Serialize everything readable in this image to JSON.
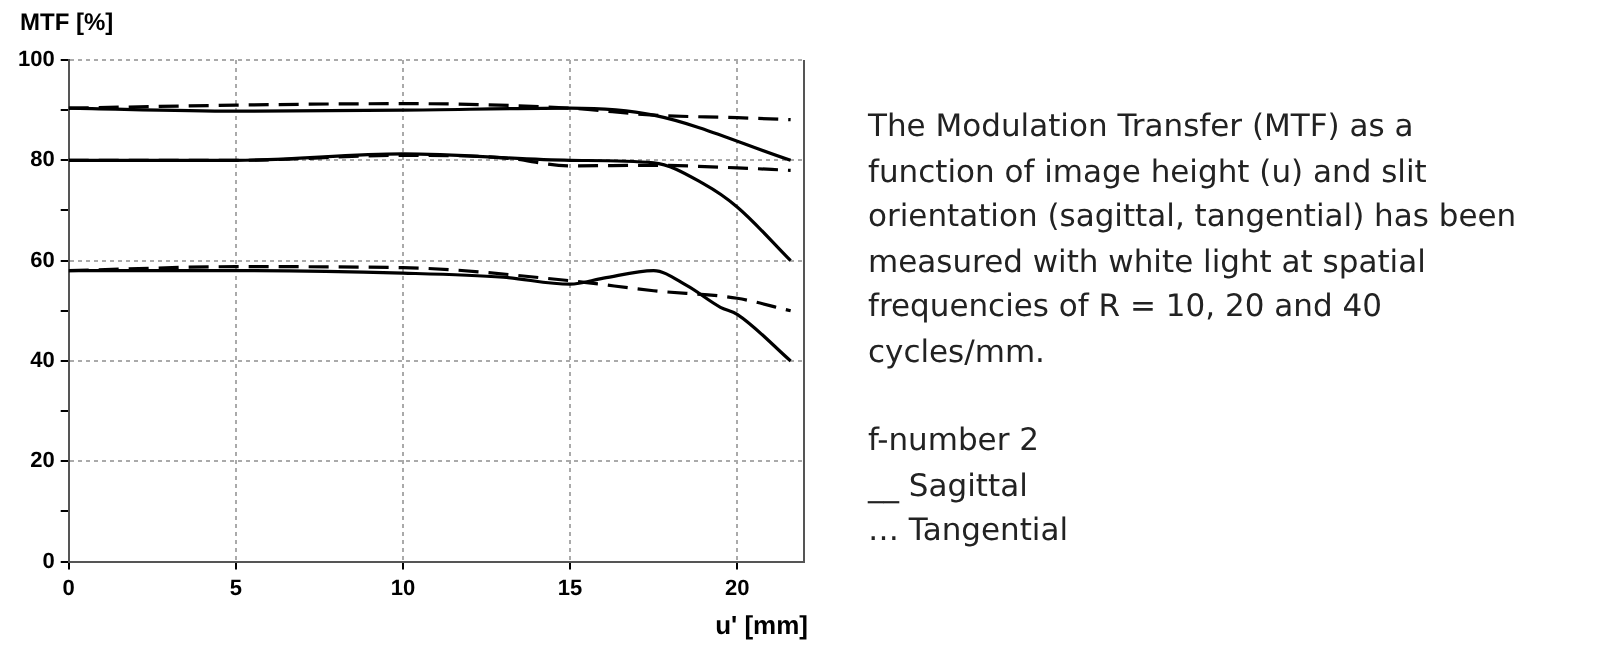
{
  "chart_data": {
    "type": "line",
    "ylabel": "MTF [%]",
    "xlabel": "u' [mm]",
    "xlim": [
      0,
      22
    ],
    "xticks": [
      0,
      5,
      10,
      15,
      20
    ],
    "ylim": [
      0,
      100
    ],
    "yticks": [
      0,
      {
        "value": 10,
        "label": null
      },
      20,
      {
        "value": 30,
        "label": null
      },
      40,
      {
        "value": 50,
        "label": null
      },
      60,
      {
        "value": 70,
        "label": null
      },
      80,
      {
        "value": 90,
        "label": null
      },
      100
    ],
    "grid": true,
    "legend": false,
    "marker": "none",
    "series": [
      {
        "color": "#000000",
        "line_style": "solid",
        "x": [
          0,
          5,
          10,
          15,
          17.5,
          21.6
        ],
        "values": [
          90.4,
          89.8,
          90,
          90.4,
          89,
          80
        ]
      },
      {
        "color": "#000000",
        "line_style": "dashed",
        "x": [
          0,
          5,
          10,
          15,
          17.5,
          20,
          21.6
        ],
        "values": [
          90.4,
          91,
          91.3,
          90.4,
          89,
          88.5,
          88.1
        ]
      },
      {
        "color": "#000000",
        "line_style": "solid",
        "x": [
          0,
          5,
          10,
          15,
          17.5,
          19,
          20,
          21.6
        ],
        "values": [
          80,
          80,
          81.3,
          80,
          79.5,
          75.3,
          70.7,
          60
        ]
      },
      {
        "color": "#000000",
        "line_style": "dashed",
        "x": [
          0,
          5,
          10,
          13,
          15,
          17.5,
          20,
          21.6
        ],
        "values": [
          80,
          80,
          81,
          80.5,
          78.9,
          79,
          78.5,
          78
        ]
      },
      {
        "color": "#000000",
        "line_style": "solid",
        "x": [
          0,
          5,
          10,
          13,
          15,
          16,
          17.5,
          18.5,
          19.5,
          20,
          21.6
        ],
        "values": [
          58,
          58,
          57.5,
          56.7,
          55.3,
          56.5,
          58,
          55,
          50.7,
          49.3,
          40
        ]
      },
      {
        "color": "#000000",
        "line_style": "dashed",
        "x": [
          0,
          5,
          10,
          15,
          17.5,
          20,
          21.6
        ],
        "values": [
          58,
          58.8,
          58.6,
          56,
          54,
          52.5,
          50
        ]
      }
    ],
    "annotations": [
      "The Modulation Transfer (MTF) as a function of image height (u) and slit orientation (sagittal, tangential) has been measured with white light at spatial frequencies of R = 10, 20 and 40 cycles/mm.",
      "f-number 2",
      "__ Sagittal",
      "… Tangential"
    ]
  }
}
